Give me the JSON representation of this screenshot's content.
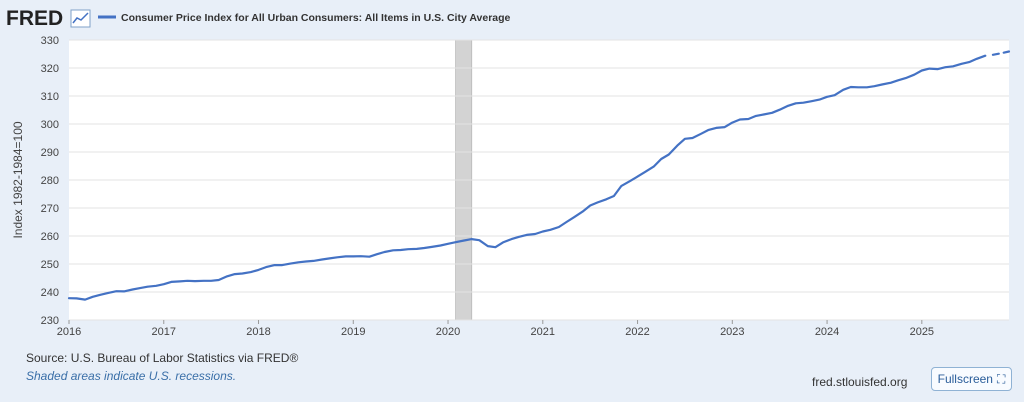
{
  "header": {
    "logo": "FRED",
    "logo_icon": "line-chart-icon",
    "legend_label": "Consumer Price Index for All Urban Consumers: All Items in U.S. City Average"
  },
  "colors": {
    "series": "#4472c4",
    "recession": "#d3d3d3",
    "grid": "#e3e3e3",
    "background": "#e8eff8",
    "plot_background": "#ffffff"
  },
  "chart_data": {
    "type": "line",
    "title": "",
    "xlabel": "",
    "ylabel": "Index 1982-1984=100",
    "ylim": [
      230,
      330
    ],
    "yticks": [
      230,
      240,
      250,
      260,
      270,
      280,
      290,
      300,
      310,
      320,
      330
    ],
    "xticks": [
      "2016",
      "2017",
      "2018",
      "2019",
      "2020",
      "2021",
      "2022",
      "2023",
      "2024",
      "2025"
    ],
    "xlim": [
      2016.0,
      2025.92
    ],
    "grid": true,
    "legend_position": "top",
    "recessions": [
      {
        "start": 2020.08,
        "end": 2020.25
      }
    ],
    "series": [
      {
        "name": "Consumer Price Index for All Urban Consumers: All Items in U.S. City Average",
        "x": [
          2016.0,
          2016.08,
          2016.17,
          2016.25,
          2016.33,
          2016.42,
          2016.5,
          2016.58,
          2016.67,
          2016.75,
          2016.83,
          2016.92,
          2017.0,
          2017.08,
          2017.17,
          2017.25,
          2017.33,
          2017.42,
          2017.5,
          2017.58,
          2017.67,
          2017.75,
          2017.83,
          2017.92,
          2018.0,
          2018.08,
          2018.17,
          2018.25,
          2018.33,
          2018.42,
          2018.5,
          2018.58,
          2018.67,
          2018.75,
          2018.83,
          2018.92,
          2019.0,
          2019.08,
          2019.17,
          2019.25,
          2019.33,
          2019.42,
          2019.5,
          2019.58,
          2019.67,
          2019.75,
          2019.83,
          2019.92,
          2020.0,
          2020.08,
          2020.17,
          2020.25,
          2020.33,
          2020.42,
          2020.5,
          2020.58,
          2020.67,
          2020.75,
          2020.83,
          2020.92,
          2021.0,
          2021.08,
          2021.17,
          2021.25,
          2021.33,
          2021.42,
          2021.5,
          2021.58,
          2021.67,
          2021.75,
          2021.83,
          2021.92,
          2022.0,
          2022.08,
          2022.17,
          2022.25,
          2022.33,
          2022.42,
          2022.5,
          2022.58,
          2022.67,
          2022.75,
          2022.83,
          2022.92,
          2023.0,
          2023.08,
          2023.17,
          2023.25,
          2023.33,
          2023.42,
          2023.5,
          2023.58,
          2023.67,
          2023.75,
          2023.83,
          2023.92,
          2024.0,
          2024.08,
          2024.17,
          2024.25,
          2024.33,
          2024.42,
          2024.5,
          2024.58,
          2024.67,
          2024.75,
          2024.83,
          2024.92,
          2025.0,
          2025.08,
          2025.17,
          2025.25,
          2025.33,
          2025.42,
          2025.5,
          2025.58,
          2025.67
        ],
        "values": [
          237.8,
          237.7,
          237.3,
          238.3,
          239.0,
          239.7,
          240.3,
          240.2,
          240.9,
          241.4,
          241.9,
          242.2,
          242.8,
          243.6,
          243.8,
          244.0,
          243.9,
          244.0,
          244.0,
          244.3,
          245.6,
          246.4,
          246.6,
          247.1,
          247.9,
          248.9,
          249.6,
          249.6,
          250.1,
          250.6,
          250.9,
          251.1,
          251.6,
          252.0,
          252.4,
          252.7,
          252.7,
          252.8,
          252.6,
          253.5,
          254.3,
          254.9,
          255.0,
          255.3,
          255.4,
          255.7,
          256.1,
          256.6,
          257.2,
          257.8,
          258.4,
          258.9,
          258.5,
          256.4,
          256.0,
          257.7,
          258.9,
          259.7,
          260.4,
          260.7,
          261.6,
          262.2,
          263.2,
          265.0,
          266.7,
          268.7,
          270.9,
          272.0,
          273.1,
          274.3,
          277.9,
          279.6,
          281.2,
          282.9,
          284.8,
          287.5,
          289.1,
          292.3,
          294.7,
          295.0,
          296.5,
          297.9,
          298.6,
          298.9,
          300.5,
          301.6,
          301.8,
          302.9,
          303.4,
          304.0,
          305.1,
          306.4,
          307.4,
          307.6,
          308.1,
          308.7,
          309.7,
          310.3,
          312.2,
          313.2,
          313.1,
          313.1,
          313.5,
          314.1,
          314.7,
          315.6,
          316.4,
          317.6,
          319.1,
          319.8,
          319.6,
          320.3,
          320.6,
          321.5,
          322.1,
          323.3,
          324.4
        ]
      },
      {
        "name": "",
        "dashed": true,
        "x": [
          2025.75,
          2025.83,
          2025.92
        ],
        "values": [
          324.7,
          325.2,
          325.9
        ]
      }
    ]
  },
  "footer": {
    "source": "Source: U.S. Bureau of Labor Statistics via FRED®",
    "note": "Shaded areas indicate U.S. recessions.",
    "site": "fred.stlouisfed.org",
    "fullscreen_label": "Fullscreen",
    "fullscreen_icon": "fullscreen-icon"
  }
}
